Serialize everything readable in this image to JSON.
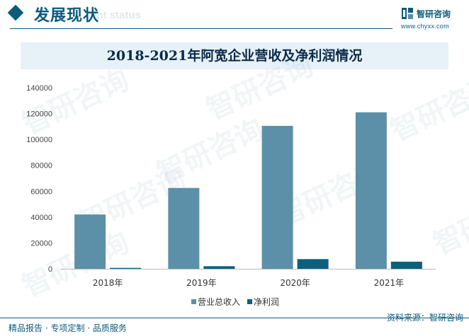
{
  "header": {
    "section_title": "发展现状",
    "section_subtitle": "ent status",
    "brand_name": "智研咨询",
    "brand_url": "www.chyxx.com"
  },
  "footer": {
    "tagline": "精品报告 · 专项定制 · 品质服务",
    "source": "资料来源：智研咨询"
  },
  "watermark": "智研咨询",
  "colors": {
    "primary": "#0d5a7c",
    "revenue": "#5b90a8",
    "profit": "#0e5f7e",
    "title_band": "#e6f2f8"
  },
  "chart_data": {
    "type": "bar",
    "title": "2018-2021年阿宽企业营收及净利润情况",
    "categories": [
      "2018年",
      "2019年",
      "2020年",
      "2021年"
    ],
    "series": [
      {
        "name": "营业总收入",
        "values": [
          42000,
          62500,
          110500,
          121000
        ]
      },
      {
        "name": "净利润",
        "values": [
          700,
          2000,
          7500,
          5500
        ]
      }
    ],
    "yticks": [
      "0",
      "20000",
      "40000",
      "60000",
      "80000",
      "100000",
      "120000",
      "140000"
    ],
    "ylim": [
      0,
      140000
    ],
    "grid": false,
    "legend_position": "bottom"
  }
}
